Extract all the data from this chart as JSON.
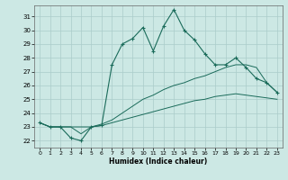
{
  "xlabel": "Humidex (Indice chaleur)",
  "background_color": "#cce8e4",
  "grid_color": "#aaccca",
  "line_color": "#1a6b5a",
  "xlim": [
    -0.5,
    23.5
  ],
  "ylim": [
    21.5,
    31.8
  ],
  "yticks": [
    22,
    23,
    24,
    25,
    26,
    27,
    28,
    29,
    30,
    31
  ],
  "xticks": [
    0,
    1,
    2,
    3,
    4,
    5,
    6,
    7,
    8,
    9,
    10,
    11,
    12,
    13,
    14,
    15,
    16,
    17,
    18,
    19,
    20,
    21,
    22,
    23
  ],
  "main_line_x": [
    0,
    1,
    2,
    3,
    4,
    5,
    6,
    7,
    8,
    9,
    10,
    11,
    12,
    13,
    14,
    15,
    16,
    17,
    18,
    19,
    20,
    21,
    22,
    23
  ],
  "main_line_y": [
    23.3,
    23.0,
    23.0,
    22.2,
    22.0,
    23.0,
    23.1,
    27.5,
    29.0,
    29.4,
    30.2,
    28.5,
    30.3,
    31.5,
    30.0,
    29.3,
    28.3,
    27.5,
    27.5,
    28.0,
    27.3,
    26.5,
    26.2,
    25.5
  ],
  "line2_x": [
    0,
    1,
    2,
    3,
    4,
    5,
    6,
    7,
    8,
    9,
    10,
    11,
    12,
    13,
    14,
    15,
    16,
    17,
    18,
    19,
    20,
    21,
    22,
    23
  ],
  "line2_y": [
    23.3,
    23.0,
    23.0,
    23.0,
    22.5,
    23.0,
    23.2,
    23.5,
    24.0,
    24.5,
    25.0,
    25.3,
    25.7,
    26.0,
    26.2,
    26.5,
    26.7,
    27.0,
    27.3,
    27.5,
    27.5,
    27.3,
    26.2,
    25.5
  ],
  "line3_x": [
    0,
    1,
    2,
    3,
    4,
    5,
    6,
    7,
    8,
    9,
    10,
    11,
    12,
    13,
    14,
    15,
    16,
    17,
    18,
    19,
    20,
    21,
    22,
    23
  ],
  "line3_y": [
    23.3,
    23.0,
    23.0,
    23.0,
    23.0,
    23.0,
    23.1,
    23.3,
    23.5,
    23.7,
    23.9,
    24.1,
    24.3,
    24.5,
    24.7,
    24.9,
    25.0,
    25.2,
    25.3,
    25.4,
    25.3,
    25.2,
    25.1,
    25.0
  ]
}
